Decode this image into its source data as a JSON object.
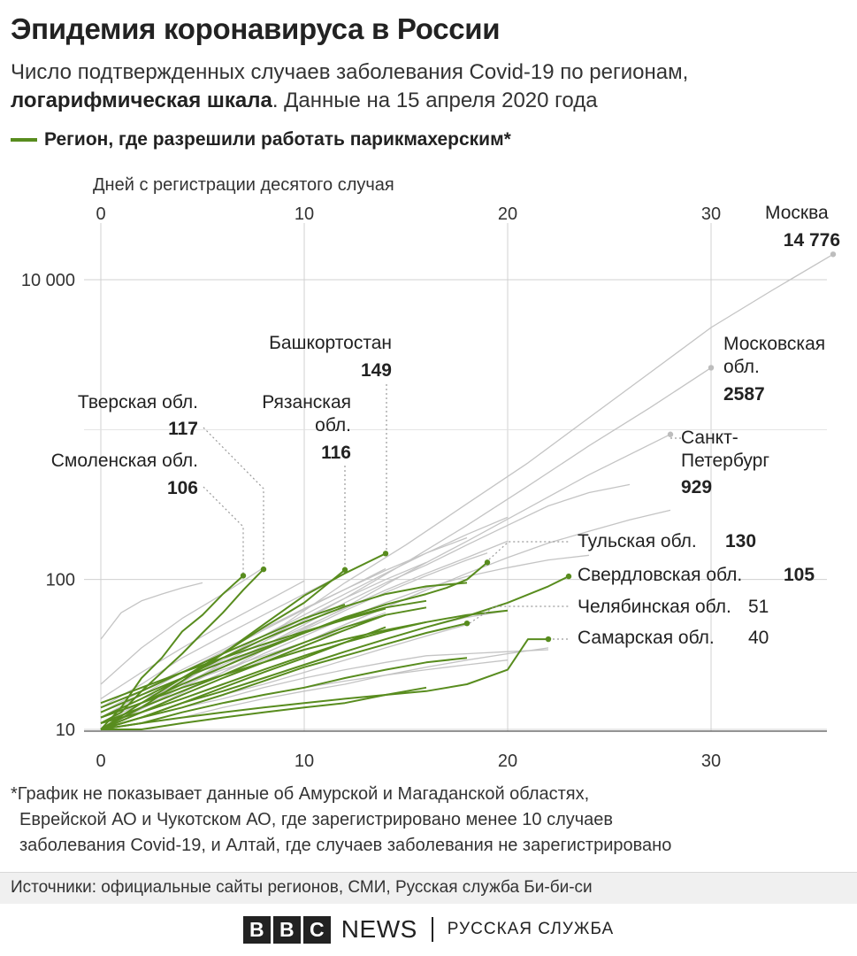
{
  "title": "Эпидемия коронавируса в России",
  "subtitle": {
    "part1": "Число подтвержденных случаев заболевания Covid-19 по регионам, ",
    "bold": "логарифмическая шкала",
    "part2": ". Данные на 15 апреля 2020 года"
  },
  "legend": {
    "label": "Регион, где разрешили работать парикмахерским*",
    "color": "#588c1e"
  },
  "colors": {
    "highlight": "#588c1e",
    "other": "#c4c4c4",
    "grid": "#d0d0d0",
    "axis": "#333333",
    "leader": "#9a9a9a"
  },
  "chart_data": {
    "type": "line",
    "title": "",
    "xlabel": "Дней с регистрации десятого случая",
    "ylabel": "",
    "x_ticks": [
      "0",
      "10",
      "20",
      "30"
    ],
    "y_ticks": [
      "10",
      "100",
      "10 000"
    ],
    "xlim": [
      0,
      36
    ],
    "ylim": [
      9,
      20000
    ],
    "y_scale": "log",
    "grid": true,
    "labeled_regions": [
      {
        "name": "Москва",
        "value": "14 776",
        "x": 36,
        "y": 14776,
        "highlight": false
      },
      {
        "name": "Московская обл.",
        "value": "2587",
        "x": 30,
        "y": 2587,
        "highlight": false
      },
      {
        "name": "Санкт-Петербург",
        "value": "929",
        "x": 28,
        "y": 929,
        "highlight": false
      },
      {
        "name": "Башкортостан",
        "value": "149",
        "x": 14,
        "y": 149,
        "highlight": true
      },
      {
        "name": "Рязанская обл.",
        "value": "116",
        "x": 12,
        "y": 116,
        "highlight": true
      },
      {
        "name": "Тверская обл.",
        "value": "117",
        "x": 8,
        "y": 117,
        "highlight": true
      },
      {
        "name": "Смоленская обл.",
        "value": "106",
        "x": 7,
        "y": 106,
        "highlight": true
      },
      {
        "name": "Тульская обл.",
        "value": "130",
        "x": 19,
        "y": 130,
        "highlight": true
      },
      {
        "name": "Свердловская обл.",
        "value": "105",
        "x": 23,
        "y": 105,
        "highlight": true
      },
      {
        "name": "Челябинская обл.",
        "value": "51",
        "x": 18,
        "y": 51,
        "highlight": true
      },
      {
        "name": "Самарская обл.",
        "value": "40",
        "x": 22,
        "y": 40,
        "highlight": true
      }
    ],
    "series": [
      {
        "x": [
          0,
          3,
          6,
          9,
          12,
          15,
          18,
          21,
          24,
          27,
          30,
          33,
          36
        ],
        "y": [
          10,
          17,
          30,
          50,
          95,
          170,
          320,
          600,
          1200,
          2400,
          4800,
          8500,
          14776
        ],
        "highlight": false
      },
      {
        "x": [
          0,
          3,
          6,
          9,
          12,
          15,
          18,
          21,
          24,
          27,
          30
        ],
        "y": [
          10,
          16,
          28,
          45,
          75,
          130,
          230,
          420,
          780,
          1400,
          2587
        ],
        "highlight": false
      },
      {
        "x": [
          0,
          3,
          6,
          9,
          12,
          15,
          18,
          21,
          24,
          28
        ],
        "y": [
          10,
          15,
          24,
          40,
          65,
          110,
          180,
          300,
          500,
          929
        ],
        "highlight": false
      },
      {
        "x": [
          0,
          2,
          4,
          6,
          8,
          10,
          12,
          14,
          16,
          18,
          20,
          22,
          24,
          26
        ],
        "y": [
          10,
          14,
          19,
          26,
          36,
          50,
          70,
          95,
          125,
          170,
          230,
          310,
          380,
          430
        ],
        "highlight": false
      },
      {
        "x": [
          0,
          2,
          4,
          6,
          8,
          10,
          12,
          14,
          16,
          18,
          20
        ],
        "y": [
          12,
          16,
          22,
          30,
          42,
          58,
          80,
          110,
          150,
          200,
          260
        ],
        "highlight": false
      },
      {
        "x": [
          0,
          2,
          4,
          6,
          8,
          10,
          12,
          14,
          16,
          18,
          20
        ],
        "y": [
          11,
          15,
          20,
          27,
          36,
          48,
          64,
          85,
          110,
          140,
          180
        ],
        "highlight": false
      },
      {
        "x": [
          0,
          2,
          4,
          6,
          8,
          10,
          12,
          14,
          16,
          18,
          19
        ],
        "y": [
          10,
          14,
          19,
          26,
          35,
          46,
          62,
          82,
          106,
          135,
          150
        ],
        "highlight": false
      },
      {
        "x": [
          0,
          2,
          4,
          6,
          8,
          10,
          12,
          14,
          16,
          18
        ],
        "y": [
          13,
          18,
          25,
          34,
          47,
          64,
          86,
          115,
          150,
          190
        ],
        "highlight": false
      },
      {
        "x": [
          0,
          2,
          4,
          6,
          8,
          10,
          12,
          14,
          16
        ],
        "y": [
          11,
          15,
          21,
          29,
          40,
          55,
          75,
          100,
          130
        ],
        "highlight": false
      },
      {
        "x": [
          0,
          2,
          4,
          6,
          8,
          10,
          12,
          14,
          16
        ],
        "y": [
          10,
          13,
          17,
          22,
          29,
          38,
          50,
          65,
          85
        ],
        "highlight": false
      },
      {
        "x": [
          0,
          2,
          4,
          6,
          8,
          10,
          12,
          14
        ],
        "y": [
          12,
          17,
          24,
          33,
          46,
          63,
          86,
          118
        ],
        "highlight": false
      },
      {
        "x": [
          0,
          2,
          4,
          6,
          8,
          10,
          12,
          14,
          16,
          18,
          20
        ],
        "y": [
          10,
          12,
          15,
          18,
          22,
          27,
          33,
          40,
          48,
          56,
          62
        ],
        "highlight": false
      },
      {
        "x": [
          0,
          2,
          4,
          6,
          8,
          10,
          12,
          14,
          16,
          18,
          20
        ],
        "y": [
          10,
          11,
          13,
          15,
          17,
          19,
          21,
          23,
          25,
          27,
          29
        ],
        "highlight": false
      },
      {
        "x": [
          0,
          2,
          4,
          6,
          8,
          10,
          12,
          14,
          16,
          18,
          20,
          22
        ],
        "y": [
          10,
          12,
          14,
          16,
          19,
          22,
          25,
          28,
          31,
          32,
          33,
          34
        ],
        "highlight": false
      },
      {
        "x": [
          0,
          1,
          2,
          3,
          4,
          5
        ],
        "y": [
          40,
          60,
          72,
          80,
          88,
          95
        ],
        "highlight": false
      },
      {
        "x": [
          0,
          2,
          4,
          6,
          8,
          10,
          12
        ],
        "y": [
          14,
          20,
          30,
          42,
          58,
          80,
          110
        ],
        "highlight": false
      },
      {
        "x": [
          0,
          2,
          4,
          6,
          8,
          10
        ],
        "y": [
          16,
          24,
          35,
          50,
          70,
          98
        ],
        "highlight": false
      },
      {
        "x": [
          0,
          2,
          4,
          6,
          8,
          10,
          12,
          14
        ],
        "y": [
          11,
          14,
          18,
          23,
          30,
          38,
          48,
          60
        ],
        "highlight": false
      },
      {
        "x": [
          0,
          2,
          4,
          6,
          8,
          10,
          12,
          14,
          16,
          18
        ],
        "y": [
          10,
          12,
          14,
          17,
          20,
          24,
          29,
          35,
          42,
          50
        ],
        "highlight": false
      },
      {
        "x": [
          0,
          2,
          4,
          6,
          8,
          10,
          12
        ],
        "y": [
          12,
          16,
          20,
          25,
          31,
          38,
          46
        ],
        "highlight": false
      },
      {
        "x": [
          0,
          2,
          4,
          6,
          8,
          10,
          12,
          14,
          16,
          18,
          20,
          22
        ],
        "y": [
          10,
          11,
          12,
          14,
          16,
          18,
          20,
          23,
          26,
          29,
          32,
          35
        ],
        "highlight": false
      },
      {
        "x": [
          0,
          2,
          4,
          6,
          8,
          10,
          12,
          14,
          16,
          18,
          20,
          22,
          24
        ],
        "y": [
          11,
          14,
          18,
          24,
          32,
          42,
          55,
          70,
          88,
          105,
          120,
          135,
          145
        ],
        "highlight": false
      },
      {
        "x": [
          0,
          2,
          4,
          6,
          8
        ],
        "y": [
          20,
          35,
          55,
          80,
          120
        ],
        "highlight": false
      },
      {
        "x": [
          0,
          2,
          4,
          6,
          8,
          10,
          12,
          14,
          16,
          18,
          20,
          22,
          24,
          26,
          28
        ],
        "y": [
          10,
          13,
          17,
          22,
          29,
          38,
          50,
          65,
          85,
          110,
          140,
          175,
          210,
          250,
          290
        ],
        "highlight": false
      },
      {
        "x": [
          0,
          1,
          2,
          3,
          4,
          5,
          6,
          7
        ],
        "y": [
          10,
          14,
          22,
          30,
          45,
          58,
          80,
          106
        ],
        "highlight": true
      },
      {
        "x": [
          0,
          1,
          2,
          3,
          4,
          5,
          6,
          7,
          8
        ],
        "y": [
          11,
          13,
          18,
          24,
          32,
          44,
          60,
          85,
          117
        ],
        "highlight": true
      },
      {
        "x": [
          0,
          2,
          4,
          6,
          8,
          10,
          12
        ],
        "y": [
          10,
          15,
          22,
          32,
          48,
          70,
          116
        ],
        "highlight": true
      },
      {
        "x": [
          0,
          2,
          4,
          6,
          8,
          10,
          12,
          14
        ],
        "y": [
          10,
          14,
          21,
          32,
          50,
          78,
          110,
          149
        ],
        "highlight": true
      },
      {
        "x": [
          0,
          2,
          4,
          6,
          8,
          10,
          12,
          14,
          16,
          17,
          18,
          19
        ],
        "y": [
          12,
          15,
          20,
          26,
          34,
          44,
          56,
          68,
          80,
          88,
          100,
          130
        ],
        "highlight": true
      },
      {
        "x": [
          0,
          2,
          4,
          6,
          8,
          10,
          12,
          14,
          16,
          18,
          20,
          22,
          23
        ],
        "y": [
          10,
          12,
          15,
          18,
          22,
          27,
          33,
          40,
          48,
          57,
          70,
          90,
          105
        ],
        "highlight": true
      },
      {
        "x": [
          0,
          2,
          4,
          6,
          8,
          10,
          12,
          14,
          16,
          18
        ],
        "y": [
          10,
          12,
          14,
          17,
          21,
          26,
          31,
          37,
          44,
          51
        ],
        "highlight": true
      },
      {
        "x": [
          0,
          2,
          4,
          6,
          8,
          10,
          12,
          14,
          16,
          18,
          20,
          21,
          22
        ],
        "y": [
          10,
          11,
          12,
          13,
          14,
          15,
          16,
          17,
          18,
          20,
          25,
          40,
          40
        ],
        "highlight": true
      },
      {
        "x": [
          0,
          2,
          4,
          6,
          8,
          10,
          12,
          14,
          16,
          18
        ],
        "y": [
          12,
          16,
          22,
          30,
          40,
          52,
          66,
          80,
          90,
          95
        ],
        "highlight": true
      },
      {
        "x": [
          0,
          2,
          4,
          6,
          8,
          10,
          12,
          14,
          16
        ],
        "y": [
          11,
          14,
          18,
          23,
          30,
          38,
          48,
          58,
          65
        ],
        "highlight": true
      },
      {
        "x": [
          0,
          2,
          4,
          6,
          8,
          10,
          12,
          14
        ],
        "y": [
          10,
          13,
          17,
          22,
          28,
          36,
          46,
          58
        ],
        "highlight": true
      },
      {
        "x": [
          0,
          2,
          4,
          6,
          8,
          10,
          12,
          14,
          16
        ],
        "y": [
          13,
          17,
          22,
          28,
          35,
          44,
          55,
          65,
          72
        ],
        "highlight": true
      },
      {
        "x": [
          0,
          2,
          4,
          6,
          8,
          10,
          12,
          14
        ],
        "y": [
          10,
          12,
          15,
          19,
          24,
          30,
          38,
          48
        ],
        "highlight": true
      },
      {
        "x": [
          0,
          2,
          4,
          6,
          8,
          10,
          12
        ],
        "y": [
          14,
          18,
          24,
          32,
          42,
          55,
          68
        ],
        "highlight": true
      },
      {
        "x": [
          0,
          2,
          4,
          6,
          8,
          10,
          12,
          14,
          16,
          18
        ],
        "y": [
          10,
          11,
          13,
          15,
          17,
          19,
          22,
          25,
          28,
          30
        ],
        "highlight": true
      },
      {
        "x": [
          0,
          2,
          4,
          6,
          8,
          10,
          12,
          14,
          16
        ],
        "y": [
          11,
          13,
          16,
          20,
          25,
          31,
          38,
          45,
          52
        ],
        "highlight": true
      },
      {
        "x": [
          0,
          2,
          4,
          6,
          8,
          10,
          12,
          14,
          16
        ],
        "y": [
          10,
          10,
          11,
          12,
          13,
          14,
          15,
          17,
          19
        ],
        "highlight": true
      },
      {
        "x": [
          0,
          2,
          4,
          6,
          8,
          10,
          12,
          14,
          16,
          18,
          20
        ],
        "y": [
          12,
          15,
          19,
          23,
          28,
          34,
          40,
          46,
          52,
          58,
          62
        ],
        "highlight": true
      },
      {
        "x": [
          0,
          2,
          4,
          6,
          8,
          10,
          12,
          14
        ],
        "y": [
          15,
          19,
          24,
          30,
          37,
          45,
          54,
          64
        ],
        "highlight": true
      }
    ]
  },
  "footnote": {
    "line1": "*График не показывает данные об Амурской и Магаданской областях,",
    "line2": "Еврейской АО и Чукотском АО, где зарегистрировано менее 10 случаев",
    "line3": "заболевания Covid-19, и Алтай, где случаев заболевания не зарегистрировано"
  },
  "source": "Источники: официальные сайты регионов, СМИ, Русская служба Би-би-си",
  "brand": {
    "letters": [
      "B",
      "B",
      "C"
    ],
    "news": "NEWS",
    "service": "РУССКАЯ СЛУЖБА"
  }
}
